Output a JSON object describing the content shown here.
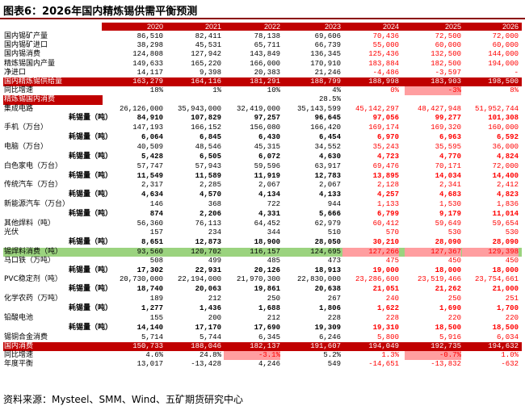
{
  "title": "图表6：2026年国内精炼锡供需平衡预测",
  "source": "资料来源：Mysteel、SMM、Wind、五矿期货研究中心",
  "years": [
    "2020",
    "2021",
    "2022",
    "2023",
    "2024",
    "2025",
    "2026"
  ],
  "rows": [
    {
      "label": "国内锡矿产量",
      "vals": [
        "86,510",
        "82,411",
        "78,138",
        "69,606",
        "70,436",
        "72,500",
        "72,000"
      ]
    },
    {
      "label": "国内锡矿进口",
      "vals": [
        "38,298",
        "45,531",
        "65,711",
        "66,739",
        "55,000",
        "60,000",
        "60,000"
      ]
    },
    {
      "label": "国内锡消费",
      "vals": [
        "124,808",
        "127,942",
        "143,849",
        "136,345",
        "125,436",
        "132,500",
        "144,000"
      ]
    },
    {
      "label": "精炼锡国内产量",
      "vals": [
        "149,633",
        "165,220",
        "166,000",
        "170,910",
        "183,884",
        "182,500",
        "194,000"
      ]
    },
    {
      "label": "净进口",
      "vals": [
        "14,117",
        "9,398",
        "20,383",
        "21,246",
        "-4,486",
        "-3,597",
        "-"
      ]
    },
    {
      "label": "国内精炼锡供给量",
      "vals": [
        "163,279",
        "164,116",
        "181,291",
        "188,799",
        "188,998",
        "183,903",
        "198,500"
      ],
      "style": "red"
    },
    {
      "label": "同比增速",
      "vals": [
        "18%",
        "1%",
        "10%",
        "4%",
        "0%",
        "-3%",
        "8%"
      ]
    },
    {
      "label": "精炼锡国内消费",
      "vals": [
        "",
        "",
        "",
        "",
        "",
        "",
        ""
      ],
      "style": "redlabel",
      "extra": "28.5%"
    },
    {
      "label": "集成电路",
      "vals": [
        "26,126,000",
        "35,943,000",
        "32,419,000",
        "35,143,599",
        "45,142,297",
        "48,427,948",
        "51,952,744"
      ]
    },
    {
      "label": "耗锡量（吨）",
      "vals": [
        "84,910",
        "107,829",
        "97,257",
        "96,645",
        "97,056",
        "99,277",
        "101,308"
      ],
      "sub": true
    },
    {
      "label": "手机（万台）",
      "vals": [
        "147,193",
        "166,152",
        "156,080",
        "166,420",
        "169,174",
        "169,320",
        "160,000"
      ]
    },
    {
      "label": "耗锡量（吨）",
      "vals": [
        "6,064",
        "6,845",
        "6,430",
        "6,454",
        "6,970",
        "6,963",
        "6,592"
      ],
      "sub": true
    },
    {
      "label": "电脑（万台）",
      "vals": [
        "40,509",
        "48,546",
        "45,315",
        "34,552",
        "35,243",
        "35,595",
        "36,000"
      ]
    },
    {
      "label": "耗锡量（吨）",
      "vals": [
        "5,428",
        "6,505",
        "6,072",
        "4,630",
        "4,723",
        "4,770",
        "4,824"
      ],
      "sub": true
    },
    {
      "label": "白色家电（万台）",
      "vals": [
        "57,747",
        "57,943",
        "59,596",
        "63,917",
        "69,476",
        "70,171",
        "72,000"
      ]
    },
    {
      "label": "耗锡量（吨）",
      "vals": [
        "11,549",
        "11,589",
        "11,919",
        "12,783",
        "13,895",
        "14,034",
        "14,400"
      ],
      "sub": true
    },
    {
      "label": "传统汽车（万台）",
      "vals": [
        "2,317",
        "2,285",
        "2,067",
        "2,067",
        "2,128",
        "2,341",
        "2,412"
      ]
    },
    {
      "label": "耗锡量（吨）",
      "vals": [
        "4,634",
        "4,570",
        "4,134",
        "4,133",
        "4,257",
        "4,683",
        "4,823"
      ],
      "sub": true
    },
    {
      "label": "新能源汽车（万台）",
      "vals": [
        "146",
        "368",
        "722",
        "944",
        "1,133",
        "1,530",
        "1,836"
      ]
    },
    {
      "label": "耗锡量（吨）",
      "vals": [
        "874",
        "2,206",
        "4,331",
        "5,666",
        "6,799",
        "9,179",
        "11,014"
      ],
      "sub": true
    },
    {
      "label": "其他焊料（吨）",
      "vals": [
        "56,360",
        "76,113",
        "64,452",
        "62,979",
        "60,412",
        "59,649",
        "59,654"
      ]
    },
    {
      "label": "光伏",
      "vals": [
        "157",
        "234",
        "344",
        "510",
        "570",
        "530",
        "530"
      ]
    },
    {
      "label": "耗锡量（吨）",
      "vals": [
        "8,651",
        "12,873",
        "18,900",
        "28,050",
        "30,210",
        "28,090",
        "28,090"
      ],
      "sub": true
    },
    {
      "label": "锡焊料消费（吨）",
      "vals": [
        "93,560",
        "120,702",
        "116,157",
        "124,695",
        "127,266",
        "127,367",
        "129,398"
      ],
      "style": "green"
    },
    {
      "label": "马口铁（万吨）",
      "vals": [
        "508",
        "499",
        "485",
        "473",
        "475",
        "450",
        "450"
      ]
    },
    {
      "label": "耗锡量（吨）",
      "vals": [
        "17,302",
        "22,931",
        "20,126",
        "18,913",
        "19,000",
        "18,000",
        "18,000"
      ],
      "sub": true
    },
    {
      "label": "PVC稳定剂（吨）",
      "vals": [
        "20,730,000",
        "22,194,000",
        "21,970,300",
        "22,830,000",
        "23,286,600",
        "23,519,466",
        "23,754,661"
      ]
    },
    {
      "label": "耗锡量（吨）",
      "vals": [
        "18,740",
        "20,063",
        "19,861",
        "20,638",
        "21,051",
        "21,262",
        "21,000"
      ],
      "sub": true
    },
    {
      "label": "化学农药（万吨）",
      "vals": [
        "189",
        "212",
        "250",
        "267",
        "240",
        "250",
        "251"
      ]
    },
    {
      "label": "耗锡量（吨）",
      "vals": [
        "1,277",
        "1,436",
        "1,688",
        "1,806",
        "1,622",
        "1,690",
        "1,700"
      ],
      "sub": true
    },
    {
      "label": "铅酸电池",
      "vals": [
        "155",
        "200",
        "212",
        "228",
        "228",
        "220",
        "220"
      ]
    },
    {
      "label": "耗锡量（吨）",
      "vals": [
        "14,140",
        "17,170",
        "17,690",
        "19,309",
        "19,310",
        "18,500",
        "18,500"
      ],
      "sub": true
    },
    {
      "label": "锡铜合金消费",
      "vals": [
        "5,714",
        "5,744",
        "6,345",
        "6,246",
        "5,800",
        "5,916",
        "6,034"
      ]
    },
    {
      "label": "国内消费",
      "vals": [
        "150,733",
        "188,046",
        "182,137",
        "191,607",
        "194,049",
        "192,735",
        "194,632"
      ],
      "style": "red"
    },
    {
      "label": "同比增速",
      "vals": [
        "4.6%",
        "24.8%",
        "-3.1%",
        "5.2%",
        "1.3%",
        "-0.7%",
        "1.0%"
      ]
    },
    {
      "label": "年度平衡",
      "vals": [
        "13,017",
        "-13,428",
        "4,246",
        "549",
        "-14,651",
        "-13,832",
        "-632"
      ]
    }
  ]
}
